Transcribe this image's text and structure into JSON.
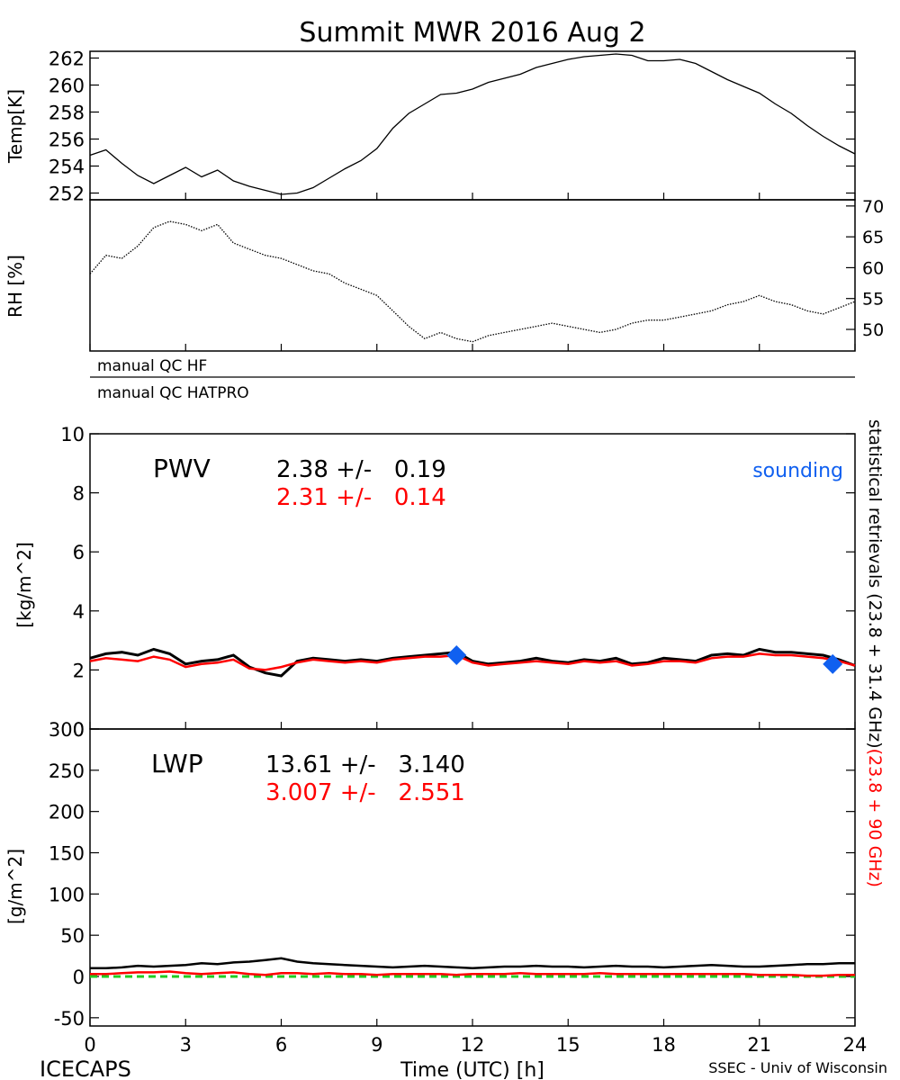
{
  "title": "Summit MWR 2016 Aug  2",
  "footer": {
    "left": "ICECAPS",
    "center": "Time (UTC) [h]",
    "right": "SSEC - Univ of Wisconsin"
  },
  "right_side_label": {
    "black": "statistical retrievals (23.8 + 31.4 GHz)",
    "red": "(23.8 + 90 GHz)"
  },
  "qc_flags": [
    "manual QC HF",
    "manual QC HATPRO"
  ],
  "colors": {
    "black": "#000000",
    "red": "#ff0000",
    "blue": "#1060f0",
    "green": "#22cc22"
  },
  "chart_data": [
    {
      "id": "temp",
      "type": "line",
      "ylabel": "Temp[K]",
      "ylim": [
        251.5,
        262.5
      ],
      "yticks": [
        252,
        254,
        256,
        258,
        260,
        262
      ],
      "y_axis_side": "left",
      "xlim": [
        0,
        24
      ],
      "series": [
        {
          "color": "#000000",
          "x": [
            0,
            0.5,
            1,
            1.5,
            2,
            2.5,
            3,
            3.5,
            4,
            4.5,
            5,
            5.5,
            6,
            6.5,
            7,
            7.5,
            8,
            8.5,
            9,
            9.5,
            10,
            10.5,
            11,
            11.5,
            12,
            12.5,
            13,
            13.5,
            14,
            14.5,
            15,
            15.5,
            16,
            16.5,
            17,
            17.5,
            18,
            18.5,
            19,
            19.5,
            20,
            20.5,
            21,
            21.5,
            22,
            22.5,
            23,
            23.5,
            24
          ],
          "y": [
            254.8,
            255.2,
            254.2,
            253.3,
            252.7,
            253.3,
            253.9,
            253.2,
            253.7,
            252.9,
            252.5,
            252.2,
            251.9,
            252.0,
            252.4,
            253.1,
            253.8,
            254.4,
            255.3,
            256.8,
            257.9,
            258.6,
            259.3,
            259.4,
            259.7,
            260.2,
            260.5,
            260.8,
            261.3,
            261.6,
            261.9,
            262.1,
            262.2,
            262.3,
            262.2,
            261.8,
            261.8,
            261.9,
            261.6,
            261.0,
            260.4,
            259.9,
            259.4,
            258.6,
            257.9,
            257.0,
            256.2,
            255.5,
            254.9
          ]
        }
      ]
    },
    {
      "id": "rh",
      "type": "line",
      "ylabel": "RH [%]",
      "ylim": [
        46.5,
        71
      ],
      "yticks": [
        50,
        55,
        60,
        65,
        70
      ],
      "y_axis_side": "right",
      "xlim": [
        0,
        24
      ],
      "series": [
        {
          "color": "#000000",
          "style": "dotted",
          "x": [
            0,
            0.5,
            1,
            1.5,
            2,
            2.5,
            3,
            3.5,
            4,
            4.5,
            5,
            5.5,
            6,
            6.5,
            7,
            7.5,
            8,
            8.5,
            9,
            9.5,
            10,
            10.5,
            11,
            11.5,
            12,
            12.5,
            13,
            13.5,
            14,
            14.5,
            15,
            15.5,
            16,
            16.5,
            17,
            17.5,
            18,
            18.5,
            19,
            19.5,
            20,
            20.5,
            21,
            21.5,
            22,
            22.5,
            23,
            23.5,
            24
          ],
          "y": [
            59.0,
            62.0,
            61.5,
            63.5,
            66.5,
            67.5,
            67.0,
            66.0,
            67.0,
            64.0,
            63.0,
            62.0,
            61.5,
            60.5,
            59.5,
            59.0,
            57.5,
            56.5,
            55.5,
            53.0,
            50.5,
            48.5,
            49.5,
            48.5,
            48.0,
            49.0,
            49.5,
            50.0,
            50.5,
            51.0,
            50.5,
            50.0,
            49.5,
            50.0,
            51.0,
            51.5,
            51.5,
            52.0,
            52.5,
            53.0,
            54.0,
            54.5,
            55.5,
            54.5,
            54.0,
            53.0,
            52.5,
            53.5,
            54.5
          ]
        }
      ]
    },
    {
      "id": "pwv",
      "type": "line",
      "ylabel": "[kg/m^2]",
      "ylim": [
        0,
        10
      ],
      "yticks": [
        0,
        2,
        4,
        6,
        8,
        10
      ],
      "y_axis_side": "left",
      "xlim": [
        0,
        24
      ],
      "label": "PWV",
      "stats": [
        {
          "text": "2.38 +/-   0.19",
          "color": "#000000"
        },
        {
          "text": "2.31 +/-   0.14",
          "color": "#ff0000"
        }
      ],
      "legend_label": "sounding",
      "series": [
        {
          "color": "#000000",
          "x": [
            0,
            0.5,
            1,
            1.5,
            2,
            2.5,
            3,
            3.5,
            4,
            4.5,
            5,
            5.5,
            6,
            6.5,
            7,
            7.5,
            8,
            8.5,
            9,
            9.5,
            10,
            10.5,
            11,
            11.5,
            12,
            12.5,
            13,
            13.5,
            14,
            14.5,
            15,
            15.5,
            16,
            16.5,
            17,
            17.5,
            18,
            18.5,
            19,
            19.5,
            20,
            20.5,
            21,
            21.5,
            22,
            22.5,
            23,
            23.5,
            24
          ],
          "y": [
            2.4,
            2.55,
            2.6,
            2.5,
            2.7,
            2.55,
            2.2,
            2.3,
            2.35,
            2.5,
            2.1,
            1.9,
            1.8,
            2.3,
            2.4,
            2.35,
            2.3,
            2.35,
            2.3,
            2.4,
            2.45,
            2.5,
            2.55,
            2.6,
            2.3,
            2.2,
            2.25,
            2.3,
            2.4,
            2.3,
            2.25,
            2.35,
            2.3,
            2.4,
            2.2,
            2.25,
            2.4,
            2.35,
            2.3,
            2.5,
            2.55,
            2.5,
            2.7,
            2.6,
            2.6,
            2.55,
            2.5,
            2.35,
            2.15
          ]
        },
        {
          "color": "#ff0000",
          "x": [
            0,
            0.5,
            1,
            1.5,
            2,
            2.5,
            3,
            3.5,
            4,
            4.5,
            5,
            5.5,
            6,
            6.5,
            7,
            7.5,
            8,
            8.5,
            9,
            9.5,
            10,
            10.5,
            11,
            11.5,
            12,
            12.5,
            13,
            13.5,
            14,
            14.5,
            15,
            15.5,
            16,
            16.5,
            17,
            17.5,
            18,
            18.5,
            19,
            19.5,
            20,
            20.5,
            21,
            21.5,
            22,
            22.5,
            23,
            23.5,
            24
          ],
          "y": [
            2.3,
            2.4,
            2.35,
            2.3,
            2.45,
            2.35,
            2.1,
            2.2,
            2.25,
            2.35,
            2.05,
            2.0,
            2.1,
            2.25,
            2.35,
            2.3,
            2.25,
            2.3,
            2.25,
            2.35,
            2.4,
            2.45,
            2.45,
            2.5,
            2.25,
            2.15,
            2.2,
            2.25,
            2.3,
            2.25,
            2.2,
            2.3,
            2.25,
            2.3,
            2.15,
            2.2,
            2.3,
            2.3,
            2.25,
            2.4,
            2.45,
            2.45,
            2.55,
            2.5,
            2.5,
            2.45,
            2.4,
            2.3,
            2.15
          ]
        }
      ],
      "markers": {
        "type": "scatter",
        "name": "sounding",
        "color": "#1060f0",
        "x": [
          11.5,
          23.3
        ],
        "y": [
          2.5,
          2.2
        ]
      }
    },
    {
      "id": "lwp",
      "type": "line",
      "ylabel": "[g/m^2]",
      "xlabel": "Time (UTC) [h]",
      "ylim": [
        -60,
        300
      ],
      "yticks": [
        -50,
        0,
        50,
        100,
        150,
        200,
        250,
        300
      ],
      "y_axis_side": "left",
      "xlim": [
        0,
        24
      ],
      "xticks": [
        0,
        3,
        6,
        9,
        12,
        15,
        18,
        21,
        24
      ],
      "label": "LWP",
      "stats": [
        {
          "text": "13.61 +/-   3.140",
          "color": "#000000"
        },
        {
          "text": "3.007 +/-   2.551",
          "color": "#ff0000"
        }
      ],
      "series": [
        {
          "color": "#000000",
          "x": [
            0,
            0.5,
            1,
            1.5,
            2,
            2.5,
            3,
            3.5,
            4,
            4.5,
            5,
            5.5,
            6,
            6.5,
            7,
            7.5,
            8,
            8.5,
            9,
            9.5,
            10,
            10.5,
            11,
            11.5,
            12,
            12.5,
            13,
            13.5,
            14,
            14.5,
            15,
            15.5,
            16,
            16.5,
            17,
            17.5,
            18,
            18.5,
            19,
            19.5,
            20,
            20.5,
            21,
            21.5,
            22,
            22.5,
            23,
            23.5,
            24
          ],
          "y": [
            10,
            10,
            11,
            13,
            12,
            13,
            14,
            16,
            15,
            17,
            18,
            20,
            22,
            18,
            16,
            15,
            14,
            13,
            12,
            11,
            12,
            13,
            12,
            11,
            10,
            11,
            12,
            12,
            13,
            12,
            12,
            11,
            12,
            13,
            12,
            12,
            11,
            12,
            13,
            14,
            13,
            12,
            12,
            13,
            14,
            15,
            15,
            16,
            16
          ]
        },
        {
          "color": "#ff0000",
          "x": [
            0,
            0.5,
            1,
            1.5,
            2,
            2.5,
            3,
            3.5,
            4,
            4.5,
            5,
            5.5,
            6,
            6.5,
            7,
            7.5,
            8,
            8.5,
            9,
            9.5,
            10,
            10.5,
            11,
            11.5,
            12,
            12.5,
            13,
            13.5,
            14,
            14.5,
            15,
            15.5,
            16,
            16.5,
            17,
            17.5,
            18,
            18.5,
            19,
            19.5,
            20,
            20.5,
            21,
            21.5,
            22,
            22.5,
            23,
            23.5,
            24
          ],
          "y": [
            3,
            3,
            4,
            5,
            5,
            6,
            4,
            3,
            4,
            5,
            3,
            2,
            4,
            4,
            3,
            4,
            3,
            3,
            2,
            3,
            3,
            3,
            3,
            2,
            3,
            3,
            3,
            4,
            3,
            3,
            3,
            3,
            4,
            3,
            3,
            3,
            3,
            3,
            3,
            3,
            3,
            3,
            2,
            2,
            2,
            1,
            1,
            2,
            2
          ]
        },
        {
          "color": "#22cc22",
          "style": "dashed",
          "x": [
            0,
            24
          ],
          "y": [
            0,
            0
          ]
        }
      ]
    }
  ]
}
